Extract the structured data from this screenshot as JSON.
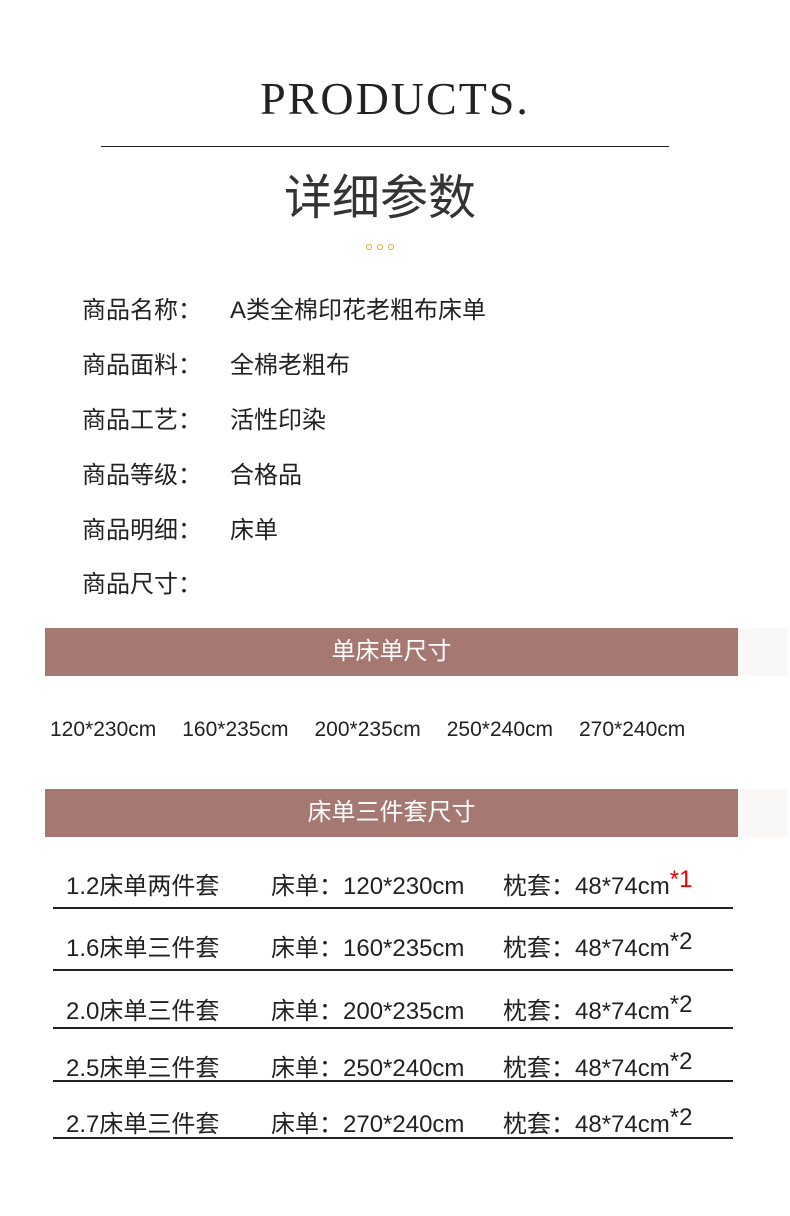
{
  "header": {
    "brand": "PRODUCTS.",
    "subtitle": "详细参数",
    "dot_color": "#e0a93a"
  },
  "specs": [
    {
      "label": "商品名称：",
      "value": "A类全棉印花老粗布床单"
    },
    {
      "label": "商品面料：",
      "value": "全棉老粗布"
    },
    {
      "label": "商品工艺：",
      "value": "活性印染"
    },
    {
      "label": "商品等级：",
      "value": "合格品"
    },
    {
      "label": "商品明细：",
      "value": "床单"
    },
    {
      "label": "商品尺寸：",
      "value": ""
    }
  ],
  "single_section": {
    "title": "单床单尺寸",
    "sizes": [
      "120*230cm",
      "160*235cm",
      "200*235cm",
      "250*240cm",
      "270*240cm"
    ]
  },
  "set_section": {
    "title": "床单三件套尺寸",
    "rows": [
      {
        "name": "1.2床单两件套",
        "sheet": "床单：120*230cm",
        "pillow": "枕套：48*74cm",
        "qty": "*1",
        "qty_highlight": true
      },
      {
        "name": "1.6床单三件套",
        "sheet": "床单：160*235cm",
        "pillow": "枕套：48*74cm",
        "qty": "*2"
      },
      {
        "name": "2.0床单三件套",
        "sheet": "床单：200*235cm",
        "pillow": "枕套：48*74cm",
        "qty": "*2"
      },
      {
        "name": "2.5床单三件套",
        "sheet": "床单：250*240cm",
        "pillow": "枕套：48*74cm",
        "qty": "*2"
      },
      {
        "name": "2.7床单三件套",
        "sheet": "床单：270*240cm",
        "pillow": "枕套：48*74cm",
        "qty": "*2"
      }
    ]
  },
  "colors": {
    "banner": "#a67872",
    "highlight": "#e00000"
  }
}
